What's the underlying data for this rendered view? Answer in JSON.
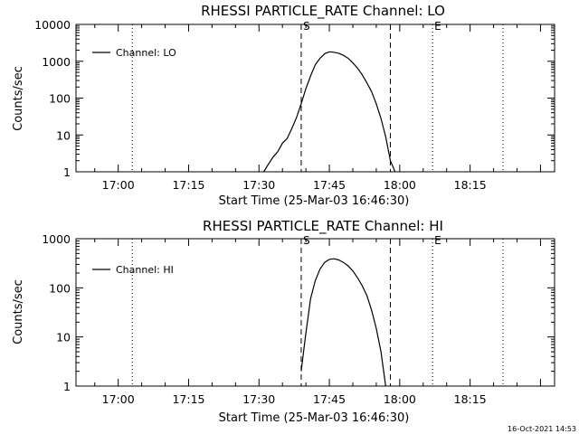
{
  "footer": {
    "timestamp": "16-Oct-2021 14:53"
  },
  "chart_data": [
    {
      "type": "line",
      "title": "RHESSI PARTICLE_RATE Channel: LO",
      "xlabel": "Start Time (25-Mar-03 16:46:30)",
      "ylabel": "Counts/sec",
      "yscale": "log",
      "xlim": [
        "16:51",
        "18:33"
      ],
      "ylim": [
        1,
        10000
      ],
      "x_ticks": [
        "17:00",
        "17:15",
        "17:30",
        "17:45",
        "18:00",
        "18:15"
      ],
      "y_ticks": [
        "1",
        "10",
        "100",
        "1000",
        "10000"
      ],
      "legend": {
        "placement": "top-left",
        "entries": [
          "Channel: LO"
        ]
      },
      "markers": [
        {
          "time": "17:39",
          "style": "dashed",
          "label": "S"
        },
        {
          "time": "17:58",
          "style": "dashed",
          "label": ""
        },
        {
          "time": "17:03",
          "style": "dotted",
          "label": ""
        },
        {
          "time": "18:07",
          "style": "dotted",
          "label": "E"
        },
        {
          "time": "18:22",
          "style": "dotted",
          "label": ""
        }
      ],
      "series": [
        {
          "name": "Channel: LO",
          "x": [
            "17:31",
            "17:32",
            "17:33",
            "17:34",
            "17:35",
            "17:36",
            "17:37",
            "17:38",
            "17:39",
            "17:40",
            "17:41",
            "17:42",
            "17:43",
            "17:44",
            "17:45",
            "17:46",
            "17:47",
            "17:48",
            "17:49",
            "17:50",
            "17:51",
            "17:52",
            "17:53",
            "17:54",
            "17:55",
            "17:56",
            "17:57",
            "17:58",
            "17:59"
          ],
          "values": [
            1,
            1.6,
            2.5,
            3.5,
            6,
            8,
            15,
            30,
            70,
            180,
            400,
            800,
            1200,
            1600,
            1800,
            1750,
            1650,
            1450,
            1200,
            900,
            650,
            430,
            260,
            150,
            70,
            28,
            9,
            2,
            1
          ]
        }
      ]
    },
    {
      "type": "line",
      "title": "RHESSI PARTICLE_RATE Channel: HI",
      "xlabel": "Start Time (25-Mar-03 16:46:30)",
      "ylabel": "Counts/sec",
      "yscale": "log",
      "xlim": [
        "16:51",
        "18:33"
      ],
      "ylim": [
        1,
        1000
      ],
      "x_ticks": [
        "17:00",
        "17:15",
        "17:30",
        "17:45",
        "18:00",
        "18:15"
      ],
      "y_ticks": [
        "1",
        "10",
        "100",
        "1000"
      ],
      "legend": {
        "placement": "top-left",
        "entries": [
          "Channel: HI"
        ]
      },
      "markers": [
        {
          "time": "17:39",
          "style": "dashed",
          "label": "S"
        },
        {
          "time": "17:58",
          "style": "dashed",
          "label": ""
        },
        {
          "time": "17:03",
          "style": "dotted",
          "label": ""
        },
        {
          "time": "18:07",
          "style": "dotted",
          "label": "E"
        },
        {
          "time": "18:22",
          "style": "dotted",
          "label": ""
        }
      ],
      "series": [
        {
          "name": "Channel: HI",
          "x": [
            "17:39",
            "17:40",
            "17:41",
            "17:42",
            "17:43",
            "17:44",
            "17:45",
            "17:46",
            "17:47",
            "17:48",
            "17:49",
            "17:50",
            "17:51",
            "17:52",
            "17:53",
            "17:54",
            "17:55",
            "17:56",
            "17:57"
          ],
          "values": [
            2,
            12,
            60,
            140,
            240,
            330,
            380,
            390,
            370,
            330,
            280,
            220,
            160,
            110,
            70,
            35,
            15,
            5,
            1
          ]
        }
      ]
    }
  ]
}
